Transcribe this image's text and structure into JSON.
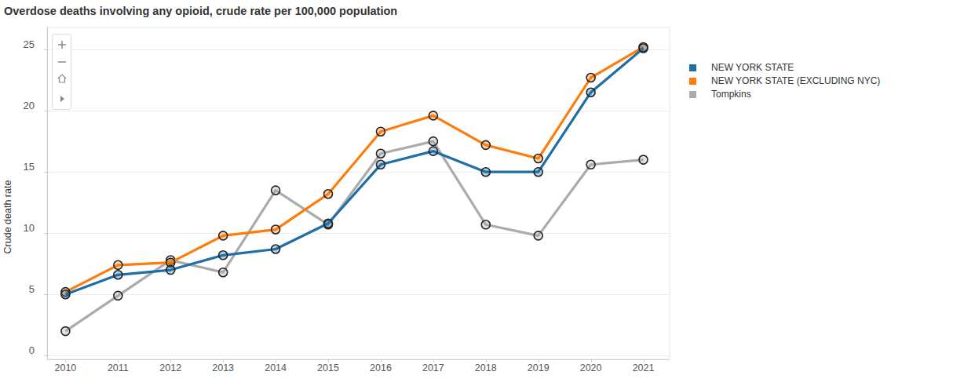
{
  "chart_data": {
    "type": "line",
    "title": "Overdose deaths involving any opioid, crude rate per 100,000 population",
    "y_label": "Crude death rate",
    "x": [
      2010,
      2011,
      2012,
      2013,
      2014,
      2015,
      2016,
      2017,
      2018,
      2019,
      2020,
      2021
    ],
    "xlim": [
      2009.65,
      2021.5
    ],
    "xticks": [
      2010,
      2011,
      2012,
      2013,
      2014,
      2015,
      2016,
      2017,
      2018,
      2019,
      2020,
      2021
    ],
    "ylim": [
      -0.3,
      26.8
    ],
    "yticks": [
      0,
      5,
      10,
      15,
      20,
      25
    ],
    "grid": true,
    "legend": "right",
    "marker": "circle",
    "series": [
      {
        "name": "NEW YORK STATE",
        "color": "#1f6fa6",
        "values": [
          5.0,
          6.6,
          7.0,
          8.2,
          8.7,
          10.8,
          15.6,
          16.7,
          15.0,
          15.0,
          21.5,
          25.1
        ]
      },
      {
        "name": "NEW YORK STATE (EXCLUDING NYC)",
        "color": "#fc7d0b",
        "values": [
          5.2,
          7.4,
          7.6,
          9.8,
          10.3,
          13.2,
          18.3,
          19.6,
          17.2,
          16.1,
          22.7,
          25.2
        ]
      },
      {
        "name": "Tompkins",
        "color": "#ababab",
        "values": [
          2.0,
          4.9,
          7.8,
          6.8,
          13.5,
          10.7,
          16.5,
          17.5,
          10.7,
          9.8,
          15.6,
          16.0
        ]
      }
    ]
  }
}
